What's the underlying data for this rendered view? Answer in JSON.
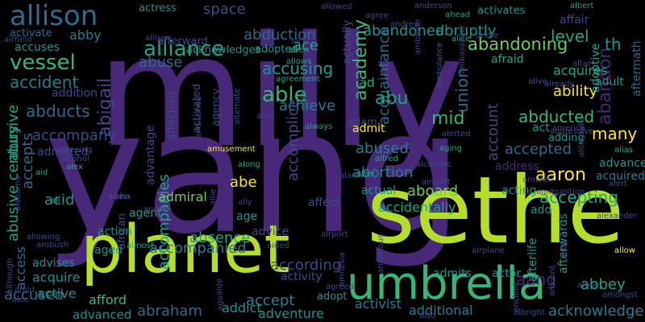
{
  "palette": {
    "background": "#000000",
    "purple": "#482878",
    "deep_purple": "#3b2a6e",
    "indigo": "#3e4989",
    "blue": "#31688e",
    "steel": "#287c8e",
    "teal": "#21918c",
    "green_teal": "#20a486",
    "green": "#35b779",
    "light_green": "#6ece58",
    "lime": "#b5de2b",
    "yellow": "#fde725"
  },
  "words": [
    {
      "text": "milly",
      "color": "purple"
    },
    {
      "text": "yang",
      "color": "purple"
    },
    {
      "text": "sethe",
      "color": "lime"
    },
    {
      "text": "planet",
      "color": "lime"
    },
    {
      "text": "umbrella",
      "color": "green"
    },
    {
      "text": "allison",
      "color": "blue"
    },
    {
      "text": "alliance",
      "color": "green_teal"
    },
    {
      "text": "vessel",
      "color": "green"
    },
    {
      "text": "abandoning",
      "color": "light_green"
    },
    {
      "text": "abduction",
      "color": "blue"
    },
    {
      "text": "abandoned",
      "color": "teal"
    },
    {
      "text": "abruptly",
      "color": "teal"
    },
    {
      "text": "accident",
      "color": "steel"
    },
    {
      "text": "able",
      "color": "green"
    },
    {
      "text": "ability",
      "color": "yellow"
    },
    {
      "text": "abducted",
      "color": "green"
    },
    {
      "text": "abandon",
      "color": "purple"
    },
    {
      "text": "abducts",
      "color": "blue"
    },
    {
      "text": "abigail",
      "color": "indigo"
    },
    {
      "text": "accompany",
      "color": "indigo"
    },
    {
      "text": "abusive century",
      "color": "green_teal"
    },
    {
      "text": "accepts",
      "color": "blue"
    },
    {
      "text": "access",
      "color": "blue"
    },
    {
      "text": "acid",
      "color": "teal"
    },
    {
      "text": "accused",
      "color": "blue"
    },
    {
      "text": "accompanies",
      "color": "green_teal"
    },
    {
      "text": "abe",
      "color": "yellow"
    },
    {
      "text": "absence",
      "color": "green_teal"
    },
    {
      "text": "accompanied",
      "color": "steel"
    },
    {
      "text": "abraham",
      "color": "blue"
    },
    {
      "text": "abused",
      "color": "steel"
    },
    {
      "text": "abortion",
      "color": "steel"
    },
    {
      "text": "accepted",
      "color": "blue"
    },
    {
      "text": "many",
      "color": "yellow"
    },
    {
      "text": "aaron",
      "color": "yellow"
    },
    {
      "text": "accepting",
      "color": "green_teal"
    },
    {
      "text": "aboard",
      "color": "light_green"
    },
    {
      "text": "accidentally",
      "color": "green_teal"
    },
    {
      "text": "abbey",
      "color": "green_teal"
    },
    {
      "text": "aang",
      "color": "purple"
    },
    {
      "text": "acknowledge",
      "color": "steel"
    },
    {
      "text": "according",
      "color": "indigo"
    },
    {
      "text": "accept",
      "color": "steel"
    },
    {
      "text": "achieve",
      "color": "steel"
    },
    {
      "text": "accomplice",
      "color": "indigo"
    },
    {
      "text": "acquaintance",
      "color": "blue"
    },
    {
      "text": "academy",
      "color": "green"
    },
    {
      "text": "union",
      "color": "blue"
    },
    {
      "text": "account",
      "color": "indigo"
    },
    {
      "text": "mid",
      "color": "green"
    },
    {
      "text": "abu",
      "color": "green_teal"
    },
    {
      "text": "accusing",
      "color": "teal"
    },
    {
      "text": "abuse",
      "color": "blue"
    },
    {
      "text": "accuses",
      "color": "teal"
    },
    {
      "text": "acknowledges",
      "color": "teal"
    },
    {
      "text": "abby",
      "color": "steel"
    },
    {
      "text": "level",
      "color": "green_teal"
    },
    {
      "text": "activate",
      "color": "blue"
    },
    {
      "text": "activates",
      "color": "teal"
    },
    {
      "text": "actress",
      "color": "teal"
    },
    {
      "text": "space",
      "color": "indigo"
    },
    {
      "text": "adopted",
      "color": "teal"
    },
    {
      "text": "ace",
      "color": "green_teal"
    },
    {
      "text": "admiral",
      "color": "light_green"
    },
    {
      "text": "agent",
      "color": "teal"
    },
    {
      "text": "age",
      "color": "teal"
    },
    {
      "text": "action",
      "color": "teal"
    },
    {
      "text": "advice",
      "color": "indigo"
    },
    {
      "text": "address",
      "color": "purple"
    },
    {
      "text": "advance",
      "color": "teal"
    },
    {
      "text": "acquired",
      "color": "steel"
    },
    {
      "text": "adding",
      "color": "teal"
    },
    {
      "text": "accusing",
      "color": "teal"
    },
    {
      "text": "adopt",
      "color": "teal"
    },
    {
      "text": "activist",
      "color": "steel"
    },
    {
      "text": "additional",
      "color": "steel"
    },
    {
      "text": "adventure",
      "color": "teal"
    },
    {
      "text": "addict",
      "color": "teal"
    },
    {
      "text": "advanced",
      "color": "teal"
    },
    {
      "text": "afford",
      "color": "green"
    },
    {
      "text": "active",
      "color": "teal"
    },
    {
      "text": "acquire",
      "color": "teal"
    },
    {
      "text": "advises",
      "color": "teal"
    },
    {
      "text": "aged",
      "color": "teal"
    },
    {
      "text": "activity",
      "color": "indigo"
    },
    {
      "text": "admits",
      "color": "teal"
    },
    {
      "text": "actor",
      "color": "teal"
    },
    {
      "text": "admitted",
      "color": "indigo"
    },
    {
      "text": "addition",
      "color": "indigo"
    },
    {
      "text": "adam",
      "color": "indigo"
    },
    {
      "text": "admit",
      "color": "yellow"
    },
    {
      "text": "affect",
      "color": "indigo"
    },
    {
      "text": "actual",
      "color": "teal"
    },
    {
      "text": "acting",
      "color": "teal"
    },
    {
      "text": "afterlife",
      "color": "teal"
    },
    {
      "text": "afterwards",
      "color": "teal"
    },
    {
      "text": "add",
      "color": "teal"
    },
    {
      "text": "acquires",
      "color": "green_teal"
    },
    {
      "text": "afraid",
      "color": "green_teal"
    },
    {
      "text": "adult",
      "color": "teal"
    },
    {
      "text": "adoptive",
      "color": "green_teal"
    },
    {
      "text": "affair",
      "color": "indigo"
    },
    {
      "text": "aftermath",
      "color": "blue"
    },
    {
      "text": "affection",
      "color": "indigo"
    },
    {
      "text": "agency",
      "color": "indigo"
    },
    {
      "text": "activated",
      "color": "indigo"
    },
    {
      "text": "advantage",
      "color": "indigo"
    },
    {
      "text": "african",
      "color": "indigo"
    },
    {
      "text": "actually",
      "color": "indigo"
    },
    {
      "text": "ad",
      "color": "green_teal"
    },
    {
      "text": "th",
      "color": "teal"
    },
    {
      "text": "afterward",
      "color": "indigo"
    },
    {
      "text": "abusive",
      "color": "green_teal"
    },
    {
      "text": "act",
      "color": "teal"
    },
    {
      "text": "airport",
      "color": "indigo"
    },
    {
      "text": "airplane",
      "color": "indigo"
    },
    {
      "text": "airfield",
      "color": "indigo"
    },
    {
      "text": "alive",
      "color": "indigo"
    },
    {
      "text": "allow",
      "color": "yellow"
    },
    {
      "text": "alias",
      "color": "green_teal"
    },
    {
      "text": "alert",
      "color": "indigo"
    },
    {
      "text": "alan",
      "color": "indigo"
    },
    {
      "text": "allen",
      "color": "green_teal"
    },
    {
      "text": "alex",
      "color": "green_teal"
    },
    {
      "text": "along",
      "color": "green_teal"
    },
    {
      "text": "alfred",
      "color": "green_teal"
    },
    {
      "text": "alter",
      "color": "green_teal"
    },
    {
      "text": "aircraft",
      "color": "indigo"
    },
    {
      "text": "alarm",
      "color": "indigo"
    },
    {
      "text": "ally",
      "color": "indigo"
    },
    {
      "text": "allie",
      "color": "indigo"
    },
    {
      "text": "alpha",
      "color": "indigo"
    },
    {
      "text": "aid",
      "color": "green_teal"
    },
    {
      "text": "ali",
      "color": "green_teal"
    },
    {
      "text": "ahead",
      "color": "green_teal"
    },
    {
      "text": "albert",
      "color": "green_teal"
    },
    {
      "text": "alice",
      "color": "green_teal"
    },
    {
      "text": "allows",
      "color": "green_teal"
    },
    {
      "text": "aging",
      "color": "green_teal"
    },
    {
      "text": "agree",
      "color": "indigo"
    },
    {
      "text": "allowed",
      "color": "indigo"
    },
    {
      "text": "anderson",
      "color": "indigo"
    },
    {
      "text": "andrew",
      "color": "indigo"
    },
    {
      "text": "ambition",
      "color": "indigo"
    },
    {
      "text": "ambulance",
      "color": "indigo"
    },
    {
      "text": "ambassador",
      "color": "indigo"
    },
    {
      "text": "andie",
      "color": "indigo"
    },
    {
      "text": "alien",
      "color": "green_teal"
    },
    {
      "text": "air",
      "color": "indigo"
    },
    {
      "text": "allison",
      "color": "indigo"
    },
    {
      "text": "agreement",
      "color": "green_teal"
    },
    {
      "text": "altar",
      "color": "indigo"
    },
    {
      "text": "already",
      "color": "indigo"
    },
    {
      "text": "aggressive",
      "color": "indigo"
    },
    {
      "text": "america",
      "color": "indigo"
    },
    {
      "text": "alexander",
      "color": "indigo"
    },
    {
      "text": "alongside",
      "color": "indigo"
    },
    {
      "text": "always",
      "color": "green_teal"
    },
    {
      "text": "alternate",
      "color": "indigo"
    },
    {
      "text": "ambushed",
      "color": "indigo"
    },
    {
      "text": "amusement",
      "color": "yellow"
    },
    {
      "text": "alcoholic",
      "color": "indigo"
    },
    {
      "text": "alcohol",
      "color": "indigo"
    },
    {
      "text": "agreeing",
      "color": "indigo"
    },
    {
      "text": "alerted",
      "color": "indigo"
    },
    {
      "text": "amulet",
      "color": "indigo"
    },
    {
      "text": "ammunition",
      "color": "indigo"
    },
    {
      "text": "andrea",
      "color": "indigo"
    },
    {
      "text": "almost",
      "color": "green_teal"
    },
    {
      "text": "aided",
      "color": "indigo"
    },
    {
      "text": "ambitious",
      "color": "indigo"
    },
    {
      "text": "amnesia",
      "color": "indigo"
    },
    {
      "text": "agreed",
      "color": "indigo"
    },
    {
      "text": "albright",
      "color": "indigo"
    },
    {
      "text": "amongst",
      "color": "indigo"
    },
    {
      "text": "alley",
      "color": "indigo"
    },
    {
      "text": "alone",
      "color": "indigo"
    },
    {
      "text": "amount",
      "color": "indigo"
    },
    {
      "text": "ancient",
      "color": "indigo"
    },
    {
      "text": "also",
      "color": "indigo"
    },
    {
      "text": "aim",
      "color": "indigo"
    },
    {
      "text": "amid",
      "color": "indigo"
    },
    {
      "text": "alec",
      "color": "indigo"
    },
    {
      "text": "although",
      "color": "indigo"
    },
    {
      "text": "allowing",
      "color": "indigo"
    },
    {
      "text": "ambush",
      "color": "indigo"
    },
    {
      "text": "alabama",
      "color": "indigo"
    },
    {
      "text": "aide",
      "color": "indigo"
    },
    {
      "text": "ago",
      "color": "indigo"
    },
    {
      "text": "ambulance",
      "color": "indigo"
    },
    {
      "text": "allen",
      "color": "indigo"
    }
  ]
}
